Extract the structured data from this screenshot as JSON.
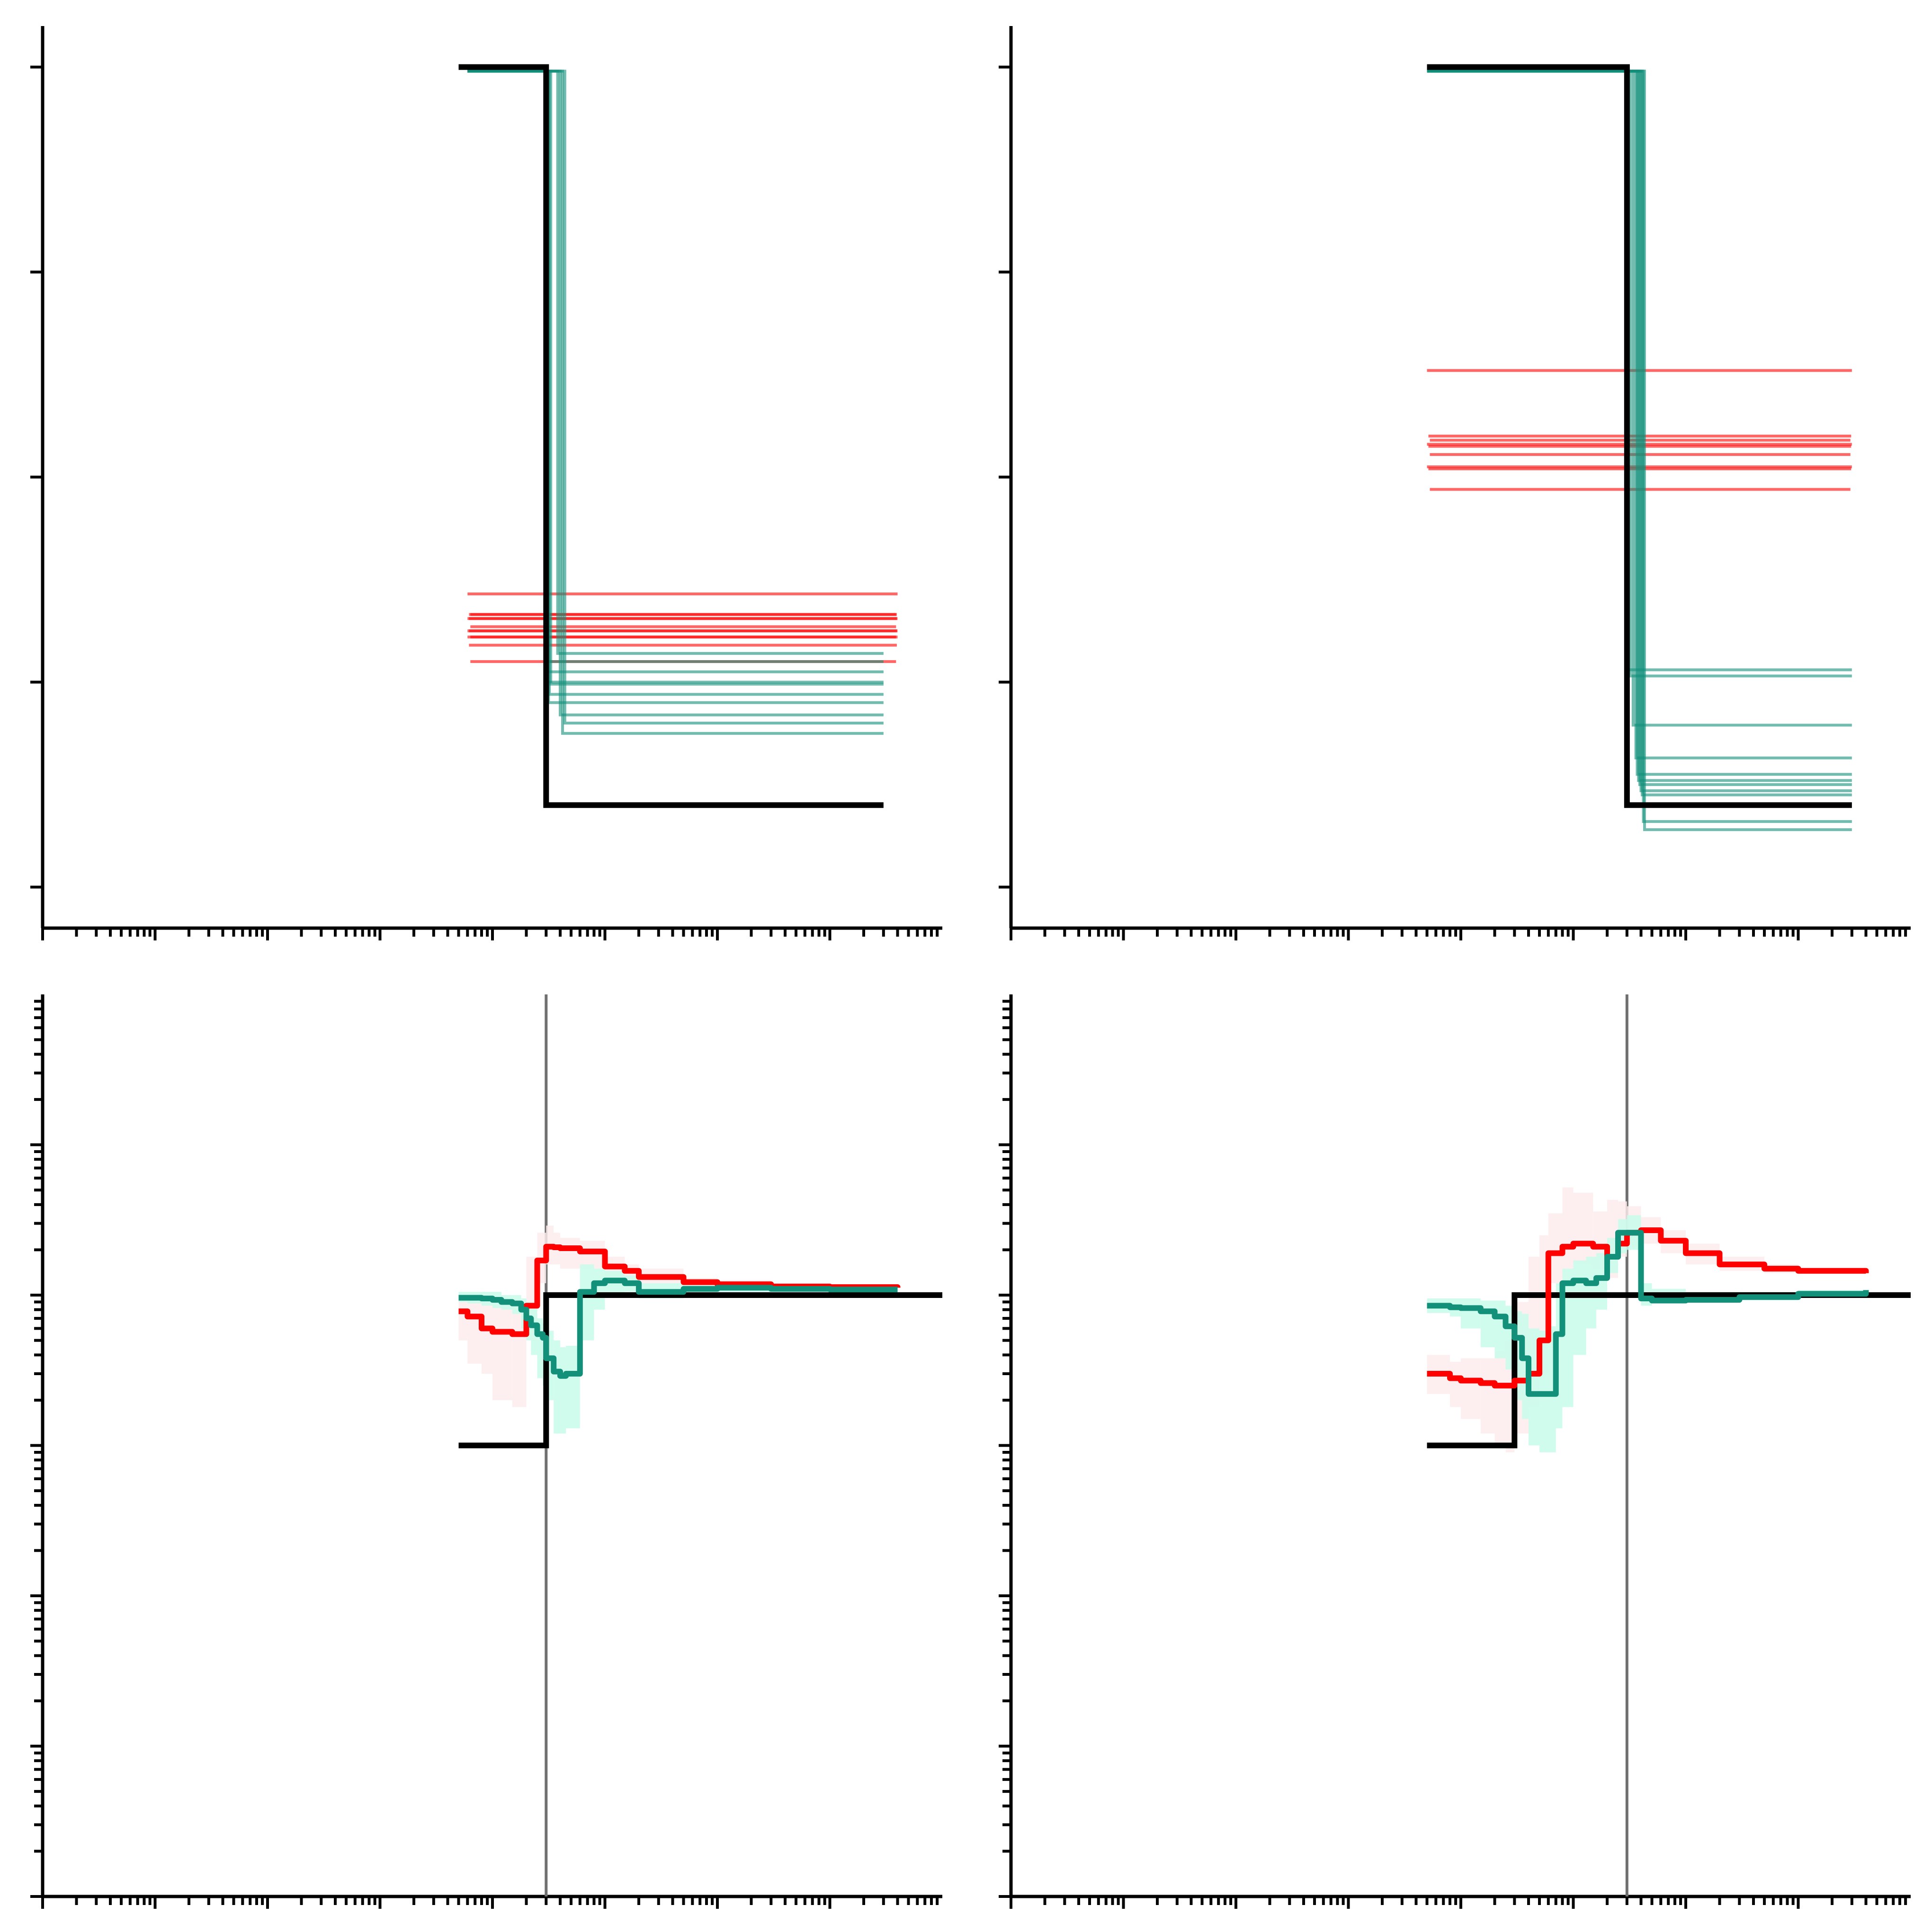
{
  "figure": {
    "colors": {
      "step": "#000000",
      "inferred_a": "#ff0000",
      "inferred_b": "#13907a",
      "marker": "#707070",
      "band_a": "#fdecec",
      "band_b": "#c8fbea"
    }
  },
  "chart_data": [
    {
      "panel": "top-left",
      "type": "line",
      "x_scale": "log",
      "xlim": [
        1,
        100000000
      ],
      "ylim": [
        -0.2,
        4.2
      ],
      "grid": false,
      "true_profile": {
        "x": [
          5000,
          30000,
          30000,
          30000000
        ],
        "y": [
          4,
          4,
          0.4,
          0.4
        ]
      },
      "series_a_levels": [
        1.43,
        1.33,
        1.33,
        1.31,
        1.31,
        1.27,
        1.25,
        1.25,
        1.22,
        1.22,
        1.18,
        1.1
      ],
      "series_a_x": [
        6000,
        40000000
      ],
      "series_b_profiles": [
        {
          "step_x": 30000,
          "low": 1.0
        },
        {
          "step_x": 30500,
          "low": 1.1
        },
        {
          "step_x": 31000,
          "low": 1.05
        },
        {
          "step_x": 32000,
          "low": 0.94
        },
        {
          "step_x": 33000,
          "low": 0.99
        },
        {
          "step_x": 31500,
          "low": 0.9
        },
        {
          "step_x": 40000,
          "low": 0.84
        },
        {
          "step_x": 42000,
          "low": 0.75
        },
        {
          "step_x": 38000,
          "low": 1.14
        },
        {
          "step_x": 44000,
          "low": 0.8
        }
      ],
      "series_b_x": [
        6000,
        30000000
      ]
    },
    {
      "panel": "top-right",
      "type": "line",
      "x_scale": "log",
      "xlim": [
        1,
        100000000
      ],
      "ylim": [
        -0.2,
        4.2
      ],
      "grid": false,
      "true_profile": {
        "x": [
          5000,
          300000,
          300000,
          30000000
        ],
        "y": [
          4,
          4,
          0.4,
          0.4
        ]
      },
      "series_a_levels": [
        2.52,
        2.2,
        2.18,
        2.16,
        2.15,
        2.11,
        2.05,
        2.04,
        1.94
      ],
      "series_a_x": [
        5000,
        30000000
      ],
      "series_b_profiles": [
        {
          "step_x": 300000,
          "low": 1.06
        },
        {
          "step_x": 320000,
          "low": 1.03
        },
        {
          "step_x": 340000,
          "low": 0.79
        },
        {
          "step_x": 360000,
          "low": 0.63
        },
        {
          "step_x": 370000,
          "low": 0.55
        },
        {
          "step_x": 380000,
          "low": 0.52
        },
        {
          "step_x": 390000,
          "low": 0.5
        },
        {
          "step_x": 400000,
          "low": 0.47
        },
        {
          "step_x": 410000,
          "low": 0.45
        },
        {
          "step_x": 420000,
          "low": 0.32
        },
        {
          "step_x": 430000,
          "low": 0.28
        }
      ],
      "series_b_x": [
        5000,
        30000000
      ]
    },
    {
      "panel": "bottom-left",
      "type": "line",
      "x_scale": "log",
      "y_scale": "log",
      "xlim": [
        1,
        100000000
      ],
      "ylim": [
        0.0001,
        100
      ],
      "grid": false,
      "vline_x": 30000,
      "true_profile": {
        "x": [
          5000,
          30000,
          30000,
          100000000
        ],
        "y": [
          0.1,
          0.1,
          1,
          1
        ]
      },
      "series_a": {
        "x": [
          5000,
          6000,
          8000,
          10000,
          15000,
          20000,
          25000,
          30000,
          35000,
          40000,
          60000,
          100000,
          150000,
          200000,
          500000,
          1000000,
          3000000,
          10000000,
          40000000
        ],
        "y": [
          0.78,
          0.72,
          0.6,
          0.57,
          0.55,
          0.85,
          1.7,
          2.1,
          2.08,
          2.05,
          1.95,
          1.55,
          1.45,
          1.32,
          1.22,
          1.18,
          1.14,
          1.13,
          1.12
        ],
        "lo": [
          0.5,
          0.35,
          0.3,
          0.2,
          0.18,
          0.5,
          1.2,
          1.6,
          1.6,
          1.5,
          1.5,
          1.3,
          1.3,
          1.2,
          1.15,
          1.1,
          1.08,
          1.07,
          1.07
        ],
        "hi": [
          1.0,
          0.95,
          0.9,
          0.85,
          0.85,
          1.8,
          2.6,
          2.9,
          2.6,
          2.4,
          2.3,
          1.8,
          1.6,
          1.5,
          1.3,
          1.26,
          1.2,
          1.18,
          1.16
        ]
      },
      "series_b": {
        "x": [
          5000,
          6000,
          8000,
          10000,
          12000,
          15000,
          18000,
          20000,
          22000,
          25000,
          28000,
          30000,
          35000,
          40000,
          45000,
          60000,
          80000,
          100000,
          150000,
          200000,
          500000,
          1000000,
          3000000,
          10000000,
          40000000
        ],
        "y": [
          0.96,
          0.96,
          0.95,
          0.93,
          0.9,
          0.88,
          0.8,
          0.7,
          0.63,
          0.55,
          0.52,
          0.38,
          0.31,
          0.29,
          0.3,
          1.05,
          1.2,
          1.25,
          1.2,
          1.05,
          1.1,
          1.12,
          1.1,
          1.09,
          1.09
        ],
        "lo": [
          0.9,
          0.88,
          0.85,
          0.82,
          0.8,
          0.75,
          0.6,
          0.5,
          0.4,
          0.28,
          0.25,
          0.2,
          0.12,
          0.12,
          0.13,
          0.5,
          0.8,
          1.0,
          1.05,
          0.95,
          1.02,
          1.05,
          1.05,
          1.06,
          1.06
        ],
        "hi": [
          1.05,
          1.05,
          1.05,
          1.05,
          1.0,
          1.0,
          0.95,
          0.9,
          0.85,
          0.7,
          0.65,
          0.58,
          0.5,
          0.45,
          0.46,
          1.6,
          1.5,
          1.45,
          1.35,
          1.2,
          1.2,
          1.18,
          1.15,
          1.12,
          1.12
        ]
      },
      "series_b_offset_note": ""
    },
    {
      "panel": "bottom-right",
      "type": "line",
      "x_scale": "log",
      "y_scale": "log",
      "xlim": [
        1,
        100000000
      ],
      "ylim": [
        0.0001,
        100
      ],
      "grid": false,
      "vline_x": 300000,
      "true_profile": {
        "x": [
          5000,
          30000,
          30000,
          100000000
        ],
        "y": [
          0.1,
          0.1,
          1,
          1
        ]
      },
      "series_a": {
        "x": [
          5000,
          8000,
          10000,
          15000,
          20000,
          25000,
          30000,
          40000,
          50000,
          60000,
          80000,
          100000,
          150000,
          200000,
          250000,
          300000,
          400000,
          600000,
          1000000,
          2000000,
          5000000,
          10000000,
          40000000
        ],
        "y": [
          0.3,
          0.28,
          0.27,
          0.26,
          0.25,
          0.25,
          0.27,
          0.3,
          0.5,
          1.9,
          2.1,
          2.2,
          2.1,
          1.8,
          2.2,
          2.6,
          2.7,
          2.3,
          1.9,
          1.6,
          1.5,
          1.45,
          1.4
        ],
        "lo": [
          0.22,
          0.18,
          0.15,
          0.12,
          0.1,
          0.09,
          0.12,
          0.18,
          0.3,
          1.2,
          1.5,
          1.6,
          1.5,
          1.3,
          1.8,
          2.1,
          2.2,
          1.9,
          1.6,
          1.45,
          1.4,
          1.38,
          1.35
        ],
        "hi": [
          0.4,
          0.36,
          0.38,
          0.38,
          0.42,
          0.5,
          0.9,
          1.8,
          2.5,
          3.5,
          5.2,
          4.8,
          3.6,
          4.3,
          4.2,
          3.9,
          3.3,
          2.7,
          2.2,
          1.8,
          1.6,
          1.52,
          1.48
        ]
      },
      "series_b": {
        "x": [
          5000,
          8000,
          10000,
          15000,
          20000,
          25000,
          30000,
          35000,
          40000,
          50000,
          60000,
          70000,
          80000,
          100000,
          130000,
          160000,
          200000,
          250000,
          300000,
          400000,
          500000,
          1000000,
          3000000,
          10000000,
          40000000
        ],
        "y": [
          0.85,
          0.83,
          0.82,
          0.78,
          0.72,
          0.62,
          0.52,
          0.38,
          0.22,
          0.22,
          0.22,
          0.55,
          1.2,
          1.25,
          1.2,
          1.3,
          1.8,
          2.6,
          2.6,
          0.95,
          0.92,
          0.93,
          0.97,
          1.02,
          1.08
        ],
        "lo": [
          0.76,
          0.72,
          0.6,
          0.45,
          0.38,
          0.32,
          0.2,
          0.15,
          0.1,
          0.09,
          0.09,
          0.13,
          0.18,
          0.4,
          0.6,
          0.8,
          1.4,
          1.9,
          2.0,
          0.85,
          0.88,
          0.9,
          0.95,
          0.99,
          1.05
        ],
        "hi": [
          0.95,
          0.95,
          0.95,
          0.92,
          0.92,
          0.85,
          0.78,
          0.75,
          0.6,
          0.58,
          0.62,
          1.2,
          1.5,
          1.7,
          1.8,
          1.9,
          2.4,
          3.2,
          3.4,
          1.2,
          1.1,
          1.05,
          1.05,
          1.08,
          1.12
        ]
      }
    }
  ]
}
